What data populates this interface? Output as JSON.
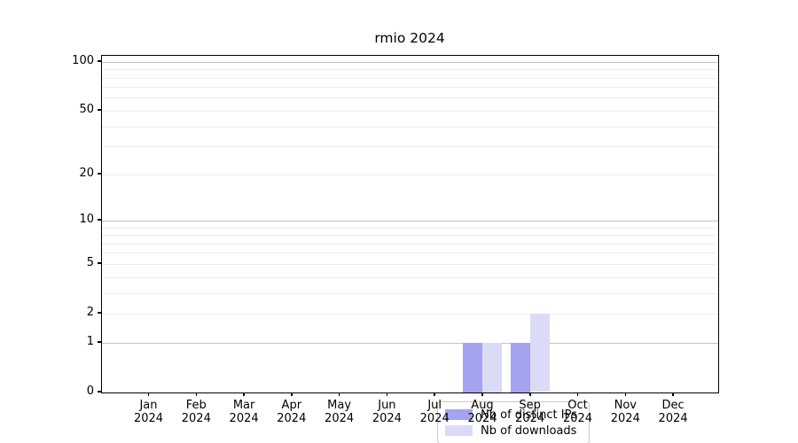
{
  "chart_data": {
    "type": "bar",
    "title": "rmio 2024",
    "categories": [
      "Jan",
      "Feb",
      "Mar",
      "Apr",
      "May",
      "Jun",
      "Jul",
      "Aug",
      "Sep",
      "Oct",
      "Nov",
      "Dec"
    ],
    "year_label": "2024",
    "series": [
      {
        "name": "Nb of distinct IPs",
        "color": "#a3a3ef",
        "values": [
          0,
          0,
          0,
          0,
          0,
          0,
          0,
          1,
          1,
          0,
          0,
          0
        ]
      },
      {
        "name": "Nb of downloads",
        "color": "#dbdbf8",
        "values": [
          0,
          0,
          0,
          0,
          0,
          0,
          0,
          1,
          2,
          0,
          0,
          0
        ]
      }
    ],
    "y_axis": {
      "scale": "log10(1+x)",
      "tick_values": [
        0,
        1,
        2,
        5,
        10,
        20,
        50,
        100
      ],
      "major_grid_values": [
        1,
        10,
        100
      ],
      "minor_grid_values": [
        2,
        3,
        4,
        5,
        6,
        7,
        8,
        9,
        20,
        30,
        40,
        50,
        60,
        70,
        80,
        90
      ],
      "max": 110
    },
    "x_axis": {
      "label_line2": "2024"
    },
    "legend": {
      "position": "lower center"
    },
    "colors": {
      "bar_distinct_ips": "#a3a3ef",
      "bar_downloads": "#dbdbf8",
      "grid_major": "#c3c3c3",
      "grid_minor": "#ededed",
      "axis": "#000000",
      "background": "#ffffff"
    }
  }
}
